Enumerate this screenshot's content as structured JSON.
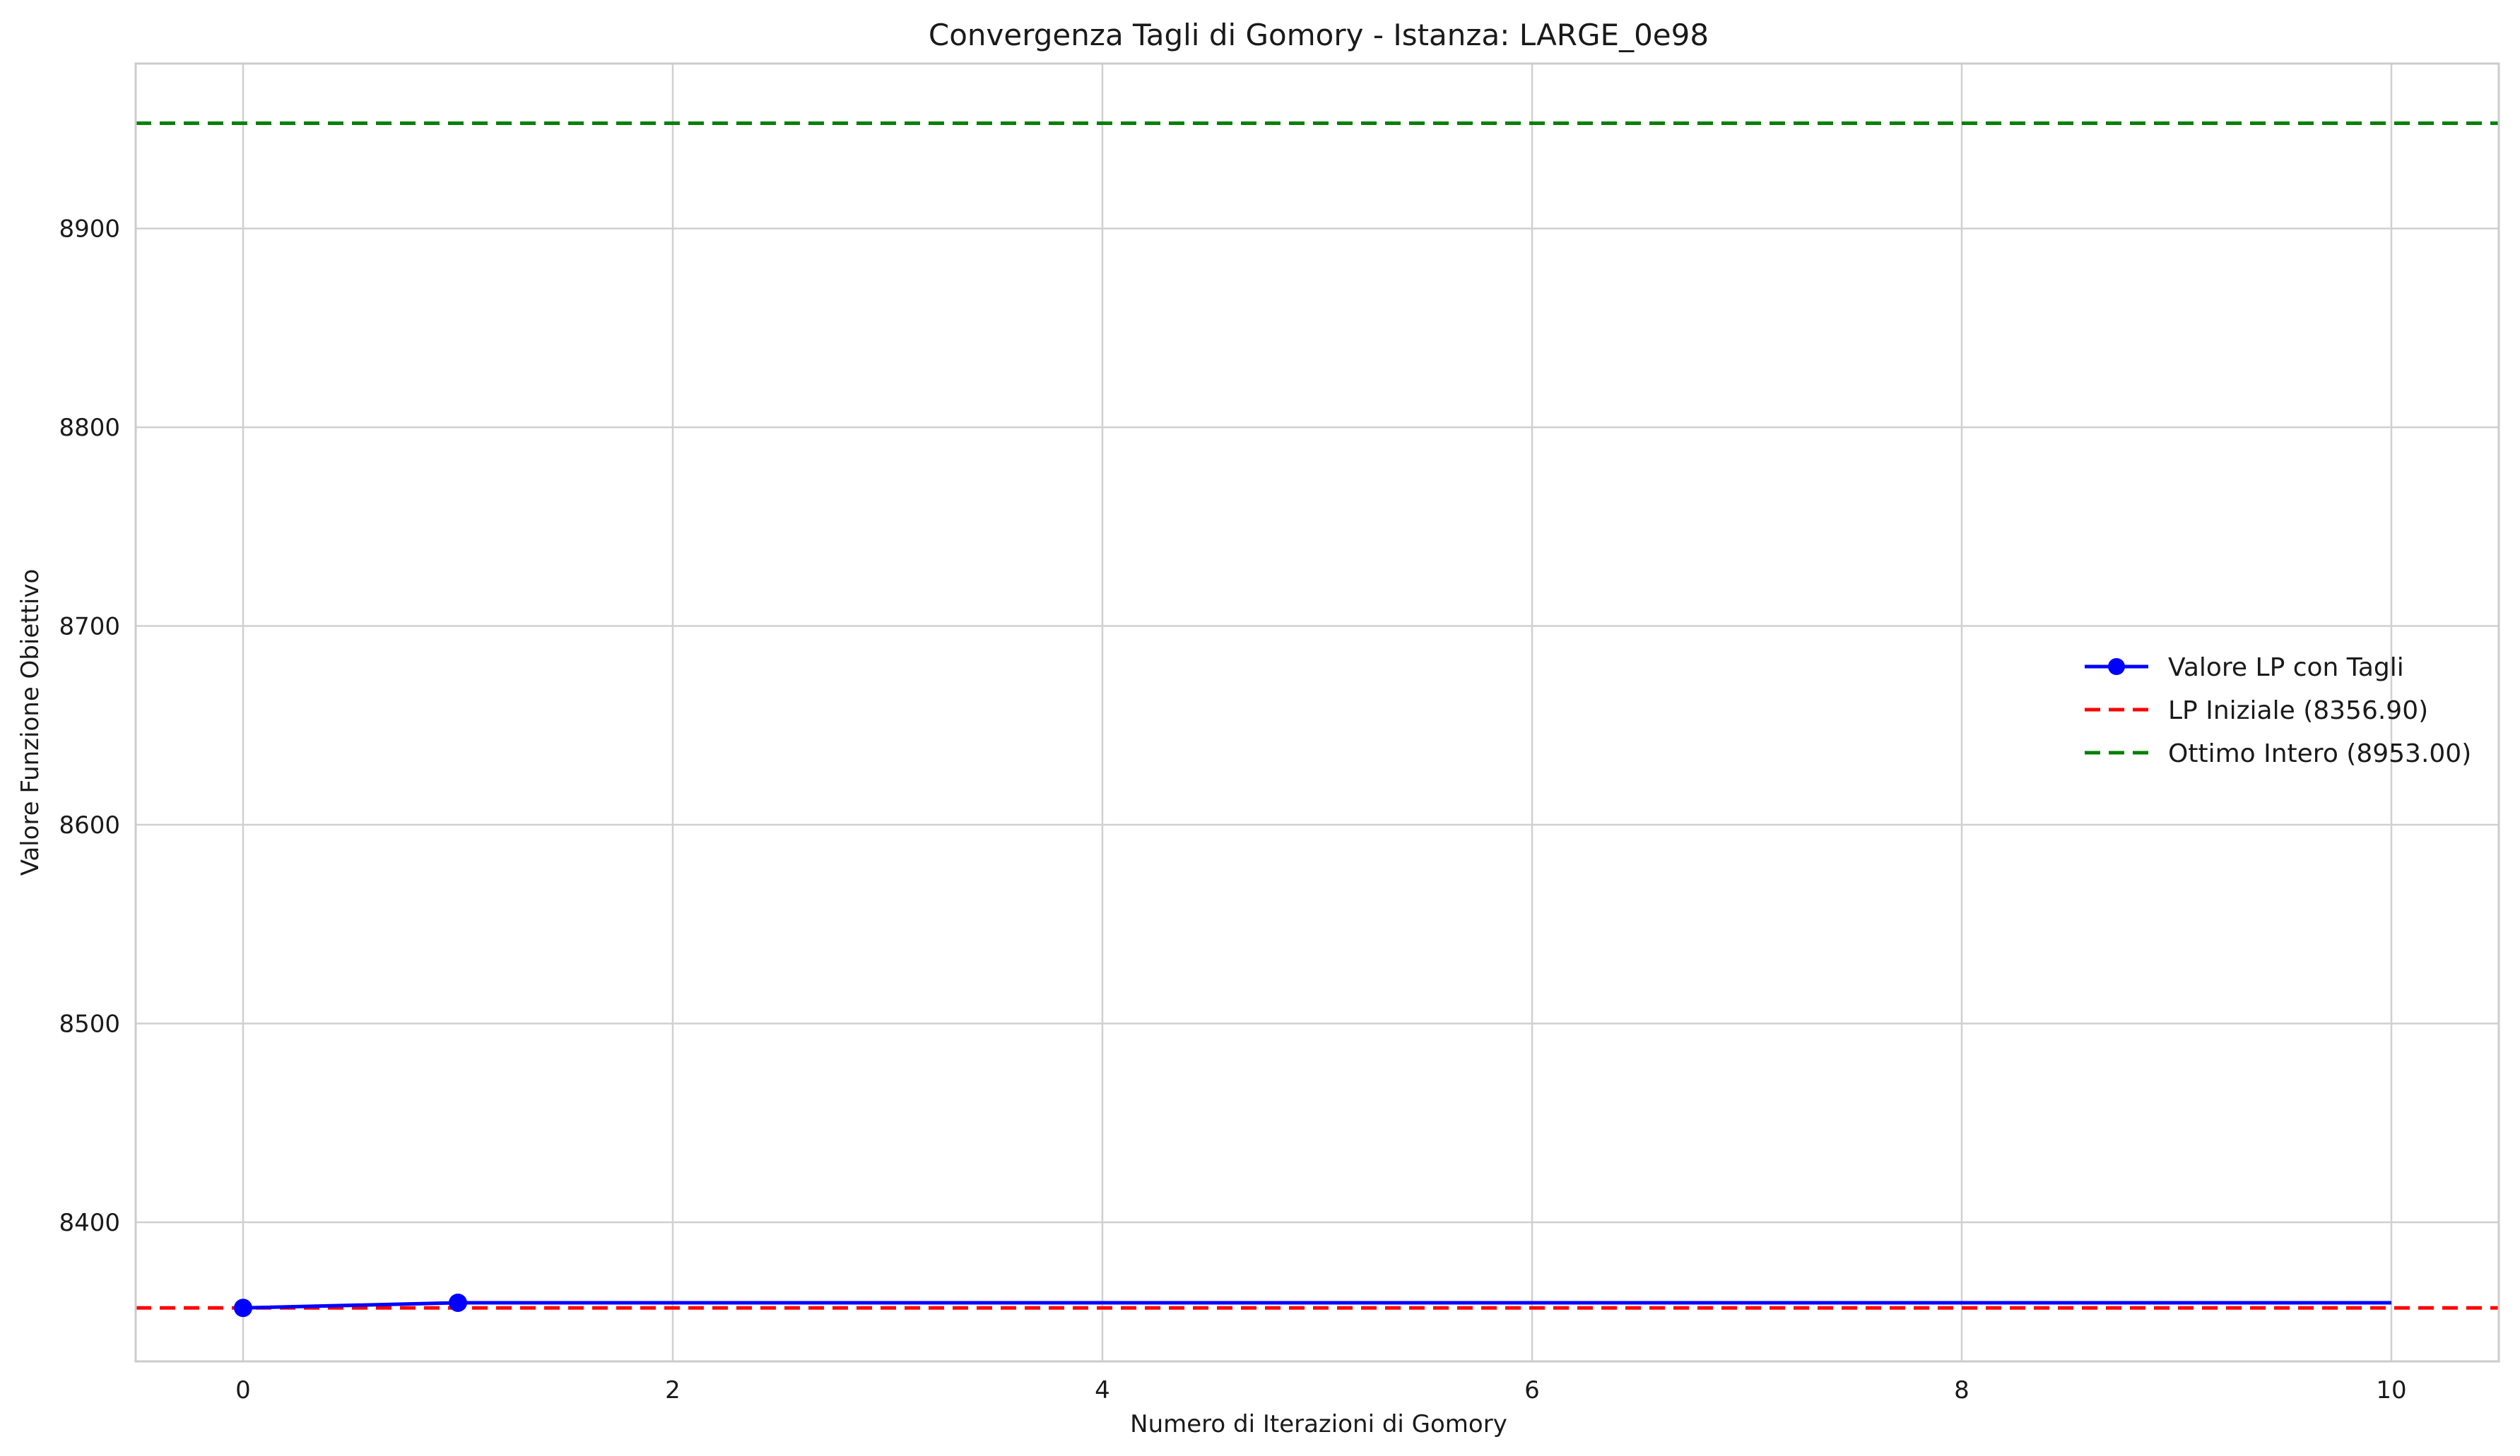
{
  "chart_data": {
    "type": "line",
    "title": "Convergenza Tagli di Gomory - Istanza: LARGE_0e98",
    "xlabel": "Numero di Iterazioni di Gomory",
    "ylabel": "Valore Funzione Obiettivo",
    "xlim": [
      -0.5,
      10.5
    ],
    "ylim": [
      8330,
      8983
    ],
    "xticks": [
      0,
      2,
      4,
      6,
      8,
      10
    ],
    "yticks": [
      8400,
      8500,
      8600,
      8700,
      8800,
      8900
    ],
    "grid": true,
    "legend_position": "center-right",
    "series": [
      {
        "name": "Valore LP con Tagli",
        "color": "#0000ff",
        "style": "solid-with-markers",
        "x": [
          0,
          1,
          2,
          3,
          4,
          5,
          6,
          7,
          8,
          9,
          10
        ],
        "y": [
          8356.9,
          8359.5,
          8359.5,
          8359.5,
          8359.5,
          8359.5,
          8359.5,
          8359.5,
          8359.5,
          8359.5,
          8359.5
        ],
        "marker_x": [
          0,
          1
        ]
      }
    ],
    "reference_lines": [
      {
        "name": "LP Iniziale (8356.90)",
        "value": 8356.9,
        "color": "#ff0000",
        "style": "dashed"
      },
      {
        "name": "Ottimo Intero (8953.00)",
        "value": 8953.0,
        "color": "#008000",
        "style": "dashed"
      }
    ]
  }
}
